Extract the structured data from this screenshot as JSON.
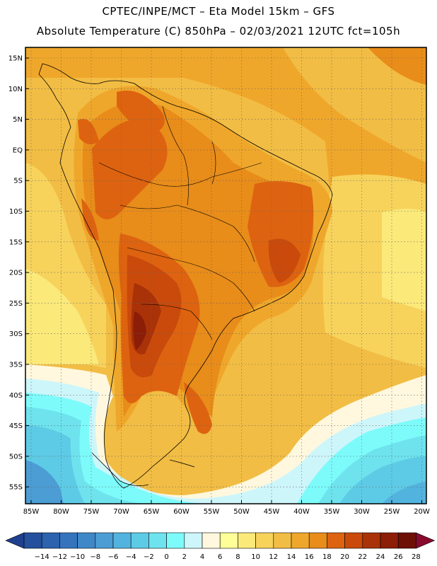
{
  "header": {
    "title_line1": "CPTEC/INPE/MCT –  Eta Model 15km – GFS",
    "title_line2": "Absolute Temperature (C) 850hPa – 02/03/2021 12UTC fct=105h"
  },
  "map": {
    "lat_labels": [
      "15N",
      "10N",
      "5N",
      "EQ",
      "5S",
      "10S",
      "15S",
      "20S",
      "25S",
      "30S",
      "35S",
      "40S",
      "45S",
      "50S",
      "55S"
    ],
    "lon_labels": [
      "85W",
      "80W",
      "75W",
      "70W",
      "65W",
      "60W",
      "55W",
      "50W",
      "45W",
      "40W",
      "35W",
      "30W",
      "25W",
      "20W"
    ],
    "lat_values": [
      15,
      10,
      5,
      0,
      -5,
      -10,
      -15,
      -20,
      -25,
      -30,
      -35,
      -40,
      -45,
      -50,
      -55
    ],
    "lon_values": [
      -85,
      -80,
      -75,
      -70,
      -65,
      -60,
      -55,
      -50,
      -45,
      -40,
      -35,
      -30,
      -25,
      -20
    ],
    "grid": true
  },
  "legend": {
    "labels": [
      "-14",
      "-12",
      "-10",
      "-8",
      "-6",
      "-4",
      "-2",
      "0",
      "2",
      "4",
      "6",
      "8",
      "10",
      "12",
      "14",
      "16",
      "18",
      "20",
      "22",
      "24",
      "26",
      "28"
    ],
    "colors": [
      "#1f3f8f",
      "#25509e",
      "#2c62ae",
      "#3574bc",
      "#3f88c8",
      "#4b9dd4",
      "#52b3de",
      "#5ecbe6",
      "#6ee3ee",
      "#7dfbfb",
      "#cdf6fb",
      "#fff8de",
      "#ffff99",
      "#fbe97a",
      "#f7d35c",
      "#f2bd44",
      "#efa72b",
      "#e88c1a",
      "#dd6310",
      "#c94a0b",
      "#a93208",
      "#8c1d06",
      "#6e0f05",
      "#8a0a2e"
    ]
  }
}
